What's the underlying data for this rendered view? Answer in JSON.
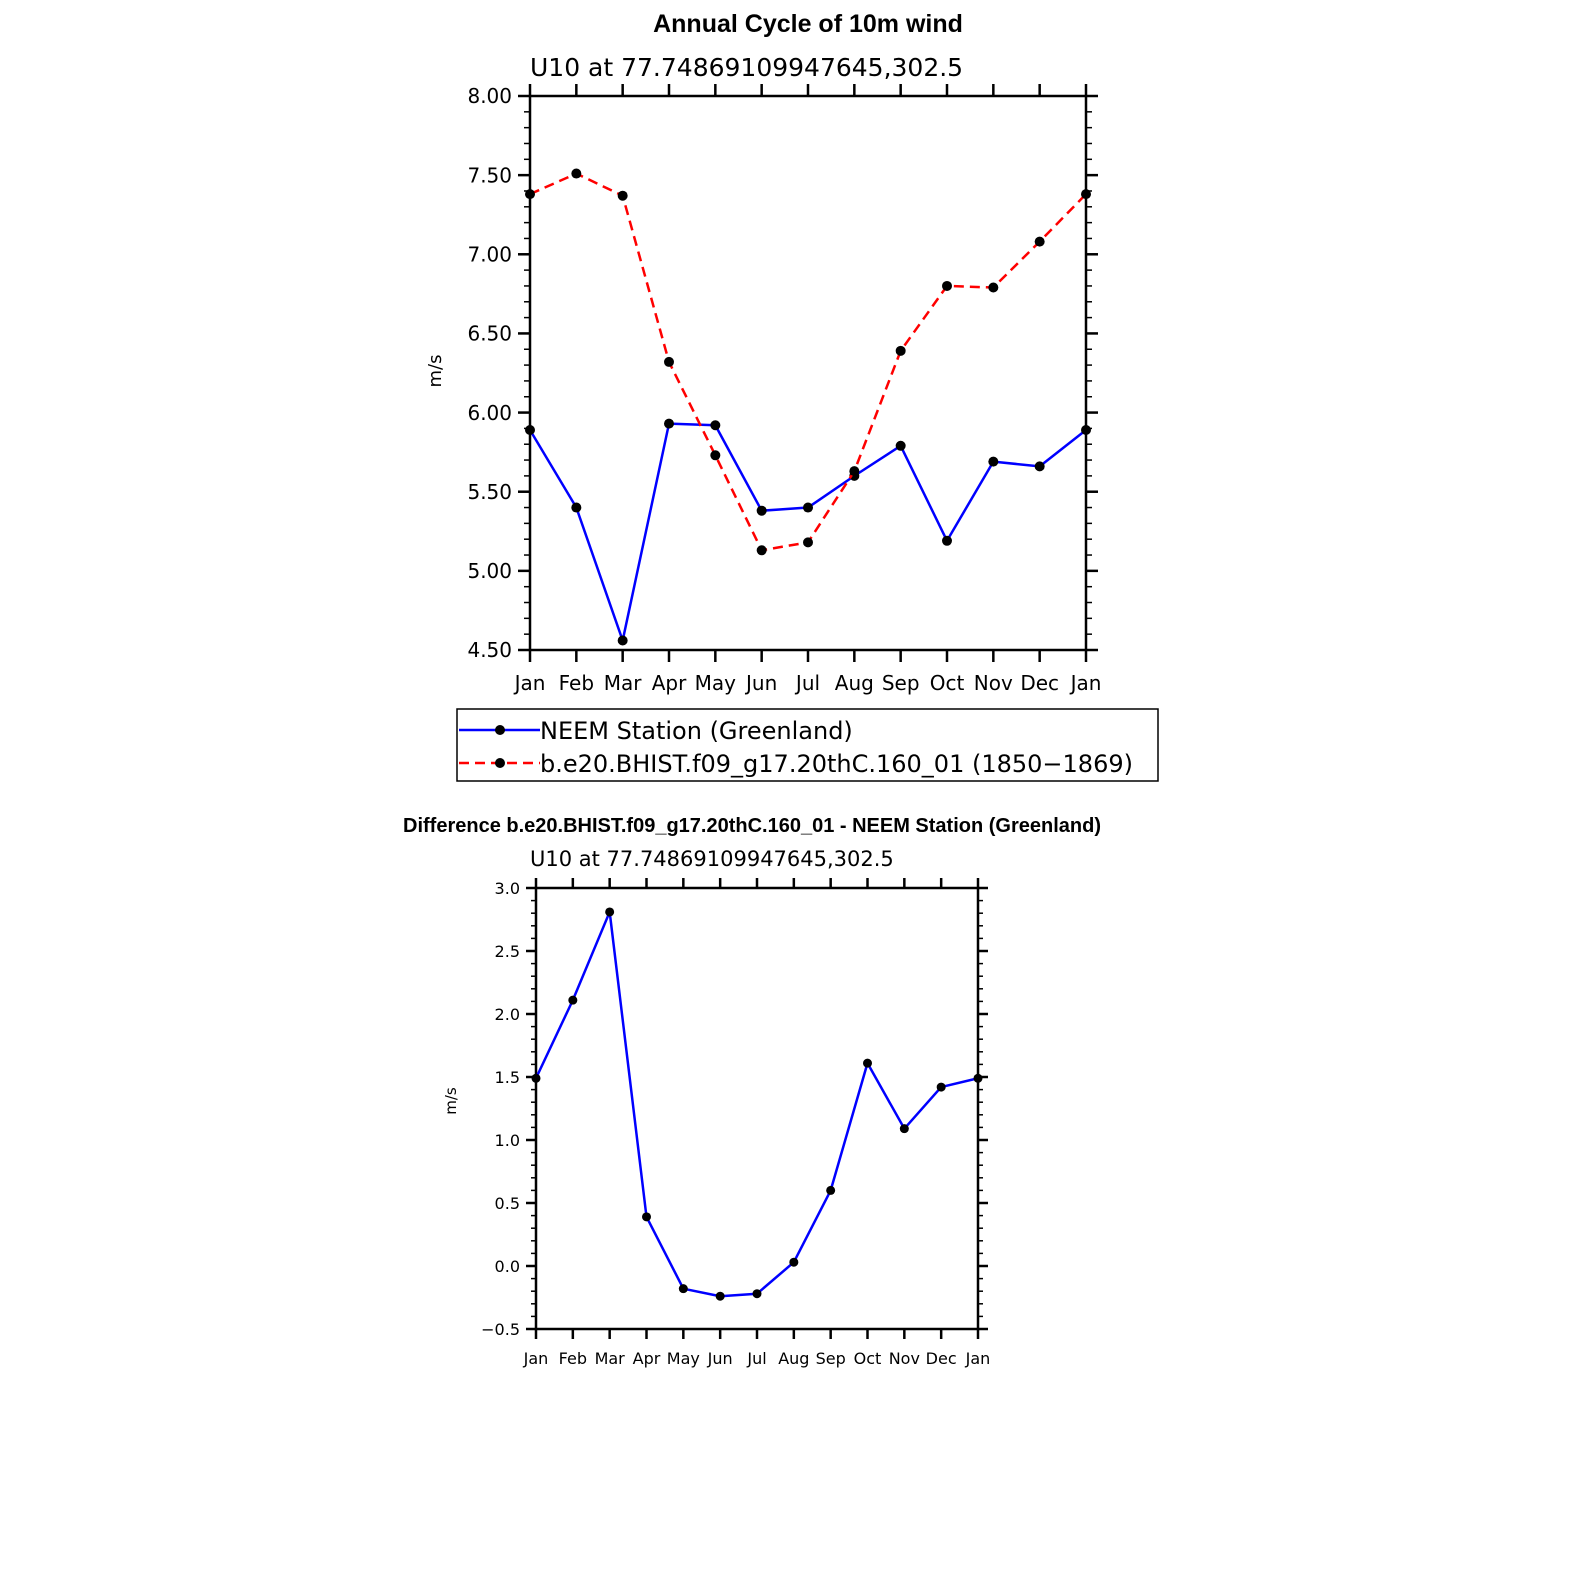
{
  "chart_data": [
    {
      "type": "line",
      "title": "Annual Cycle of 10m wind",
      "subtitle": "U10 at 77.74869109947645,302.5",
      "ylabel": "m/s",
      "xlabel": "",
      "categories": [
        "Jan",
        "Feb",
        "Mar",
        "Apr",
        "May",
        "Jun",
        "Jul",
        "Aug",
        "Sep",
        "Oct",
        "Nov",
        "Dec",
        "Jan"
      ],
      "ylim": [
        4.5,
        8.0
      ],
      "yticks": [
        "4.50",
        "5.00",
        "5.50",
        "6.00",
        "6.50",
        "7.00",
        "7.50",
        "8.00"
      ],
      "legend_position": "bottom",
      "series": [
        {
          "name": "NEEM Station (Greenland)",
          "color": "#0000ff",
          "dash": "solid",
          "values": [
            5.89,
            5.4,
            4.56,
            5.93,
            5.92,
            5.38,
            5.4,
            5.6,
            5.79,
            5.19,
            5.69,
            5.66,
            5.89
          ]
        },
        {
          "name": "b.e20.BHIST.f09_g17.20thC.160_01 (1850−1869)",
          "color": "#ff0000",
          "dash": "dashed",
          "values": [
            7.38,
            7.51,
            7.37,
            6.32,
            5.73,
            5.13,
            5.18,
            5.63,
            6.39,
            6.8,
            6.79,
            7.08,
            7.38
          ]
        }
      ]
    },
    {
      "type": "line",
      "title": "Difference b.e20.BHIST.f09_g17.20thC.160_01 - NEEM Station (Greenland)",
      "subtitle": "U10 at 77.74869109947645,302.5",
      "ylabel": "m/s",
      "xlabel": "",
      "categories": [
        "Jan",
        "Feb",
        "Mar",
        "Apr",
        "May",
        "Jun",
        "Jul",
        "Aug",
        "Sep",
        "Oct",
        "Nov",
        "Dec",
        "Jan"
      ],
      "ylim": [
        -0.5,
        3.0
      ],
      "yticks": [
        "−0.5",
        "0.0",
        "0.5",
        "1.0",
        "1.5",
        "2.0",
        "2.5",
        "3.0"
      ],
      "series": [
        {
          "color": "#0000ff",
          "dash": "solid",
          "values": [
            1.49,
            2.11,
            2.81,
            0.39,
            -0.18,
            -0.24,
            -0.22,
            0.03,
            0.6,
            1.61,
            1.09,
            1.42,
            1.49
          ]
        }
      ]
    }
  ]
}
